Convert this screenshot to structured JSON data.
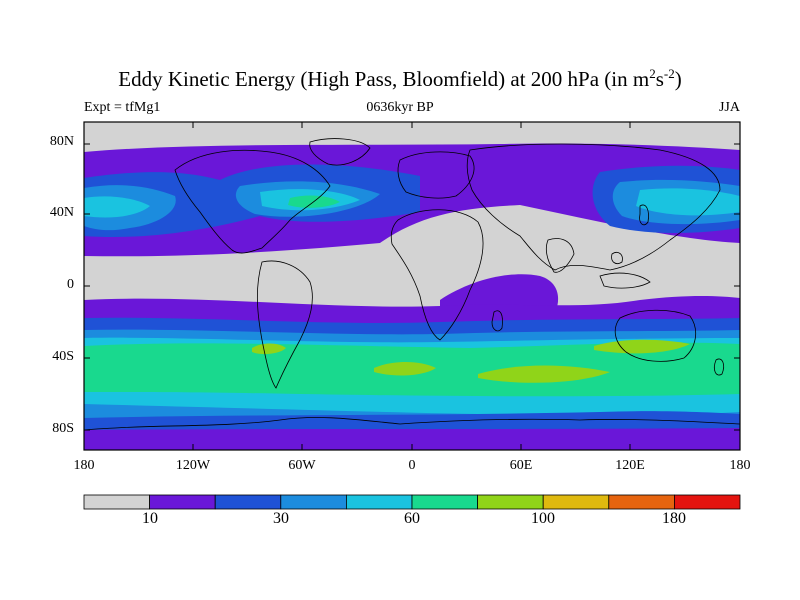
{
  "title_text": "Eddy Kinetic Energy (High Pass, Bloomfield) at 200 hPa (in m",
  "title_sup1": "2",
  "title_mid": "s",
  "title_sup2": "-2",
  "title_end": ")",
  "left_subtitle": "Expt = tfMg1",
  "center_subtitle": "0636kyr BP",
  "right_subtitle": "JJA",
  "lat_labels": [
    "80N",
    "40N",
    "0",
    "40S",
    "80S"
  ],
  "lon_labels": [
    "180",
    "120W",
    "60W",
    "0",
    "60E",
    "120E",
    "180"
  ],
  "colorbar": {
    "colors": [
      "#d3d3d3",
      "#6a17d8",
      "#1f52d6",
      "#1c8cde",
      "#1ac3e0",
      "#19d98e",
      "#90d419",
      "#dfb90f",
      "#e6640f",
      "#e4140f"
    ],
    "labels": [
      "10",
      "30",
      "60",
      "100",
      "180"
    ]
  },
  "chart_data": {
    "type": "heatmap",
    "title": "Eddy Kinetic Energy (High Pass, Bloomfield) at 200 hPa (in m2s-2)",
    "variable": "Eddy Kinetic Energy",
    "units": "m2s-2",
    "level": "200 hPa",
    "experiment": "tfMg1",
    "time": "0636kyr BP",
    "season": "JJA",
    "x_range": [
      -180,
      180
    ],
    "y_range": [
      -90,
      90
    ],
    "lon_ticks": [
      "180",
      "120W",
      "60W",
      "0",
      "60E",
      "120E",
      "180"
    ],
    "lat_ticks": [
      "80N",
      "40N",
      "0",
      "40S",
      "80S"
    ],
    "colorbar_labels": [
      10,
      30,
      60,
      100,
      180
    ],
    "colorbar_colors": [
      "#d3d3d3",
      "#6a17d8",
      "#1f52d6",
      "#1c8cde",
      "#1ac3e0",
      "#19d98e",
      "#90d419",
      "#dfb90f",
      "#e6640f",
      "#e4140f"
    ],
    "grid": false,
    "legend": "bottom"
  }
}
